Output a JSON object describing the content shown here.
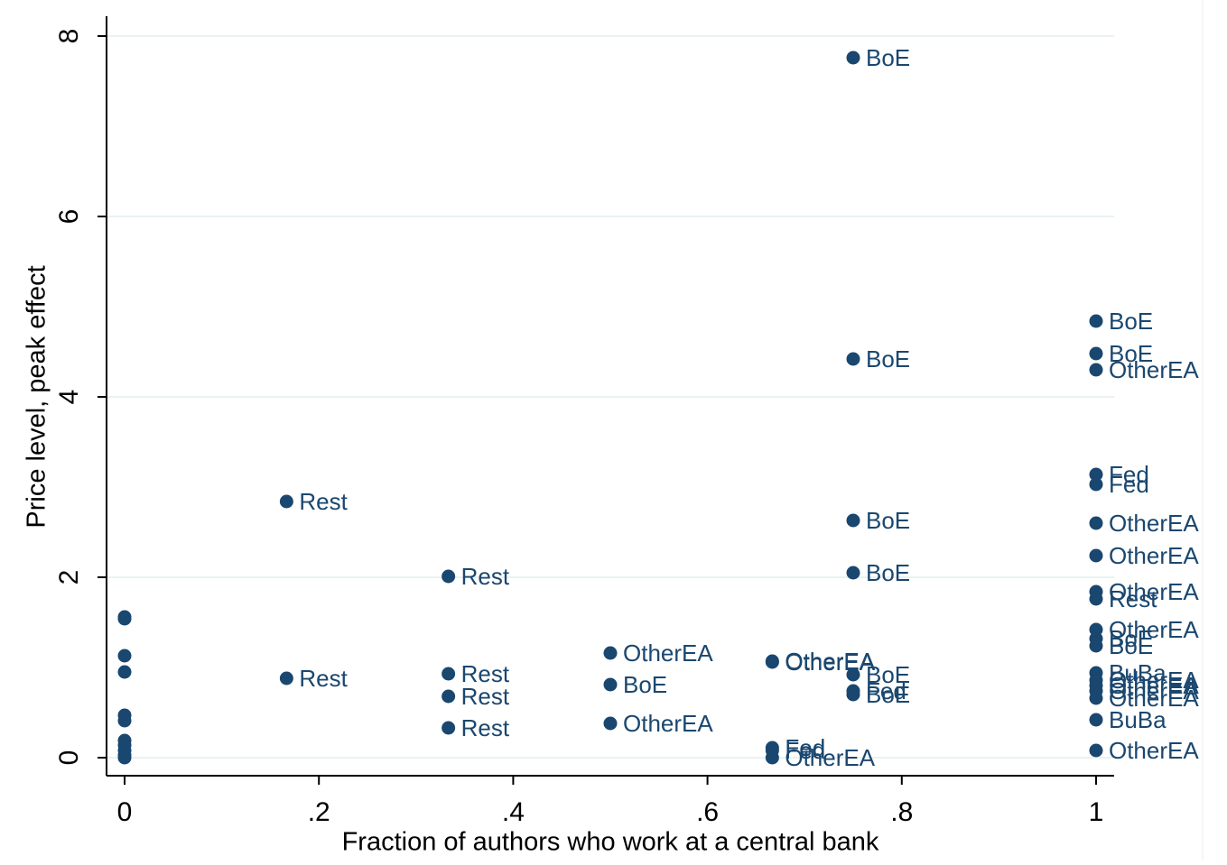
{
  "chart_data": {
    "type": "scatter",
    "x_label": "Fraction of authors who work at a central bank",
    "y_label": "Price level, peak effect",
    "xlim": [
      -0.0186,
      1.0186
    ],
    "ylim": [
      -0.2,
      8.2
    ],
    "xticks": [
      0,
      {
        "value": 0.2,
        "label": ".2"
      },
      {
        "value": 0.4,
        "label": ".4"
      },
      {
        "value": 0.6,
        "label": ".6"
      },
      {
        "value": 0.8,
        "label": ".8"
      },
      1
    ],
    "yticks": [
      0,
      2,
      4,
      6,
      8
    ],
    "grid": true,
    "color": "#1a476f",
    "x": [
      0.75,
      1,
      1,
      1,
      0.75,
      0.1667,
      0.3333,
      0.75,
      0.75,
      1,
      1,
      1,
      1,
      1,
      1,
      1,
      1,
      1,
      1,
      1,
      1,
      1,
      1,
      1,
      1,
      0.1667,
      0.3333,
      0.3333,
      0.3333,
      0.5,
      0.5,
      0.5,
      0.6667,
      0.6667,
      0.75,
      0.75,
      0.75,
      0.6667,
      0.6667,
      0.6667,
      0,
      0,
      0,
      0,
      0,
      0,
      0,
      0,
      0,
      0,
      0
    ],
    "values": [
      7.76,
      4.84,
      4.48,
      4.3,
      4.42,
      2.84,
      2.01,
      2.63,
      2.05,
      3.14,
      3.03,
      2.6,
      2.24,
      1.84,
      1.76,
      1.42,
      1.32,
      1.24,
      0.94,
      0.86,
      0.8,
      0.74,
      0.66,
      0.42,
      0.08,
      0.88,
      0.93,
      0.68,
      0.33,
      1.16,
      0.81,
      0.38,
      1.07,
      1.06,
      0.92,
      0.74,
      0.7,
      0.11,
      0.08,
      0.0,
      1.56,
      1.54,
      1.13,
      0.95,
      0.47,
      0.41,
      0.19,
      0.14,
      0.08,
      0.03,
      0.0
    ],
    "point_labels": [
      "BoE",
      "BoE",
      "BoE",
      "OtherEA",
      "BoE",
      "Rest",
      "Rest",
      "BoE",
      "BoE",
      "Fed",
      "Fed",
      "OtherEA",
      "OtherEA",
      "OtherEA",
      "Rest",
      "OtherEA",
      "BoE",
      "BoE",
      "BuBa",
      "OtherEA",
      "OtherEA",
      "OtherEA",
      "OtherEA",
      "BuBa",
      "OtherEA",
      "Rest",
      "Rest",
      "Rest",
      "Rest",
      "OtherEA",
      "BoE",
      "OtherEA",
      "OtherEA",
      "OtherEA",
      "BoE",
      "Fed",
      "BoE",
      "Fed",
      "Fed",
      "OtherEA",
      null,
      null,
      null,
      null,
      null,
      null,
      null,
      null,
      null,
      null,
      null
    ]
  }
}
